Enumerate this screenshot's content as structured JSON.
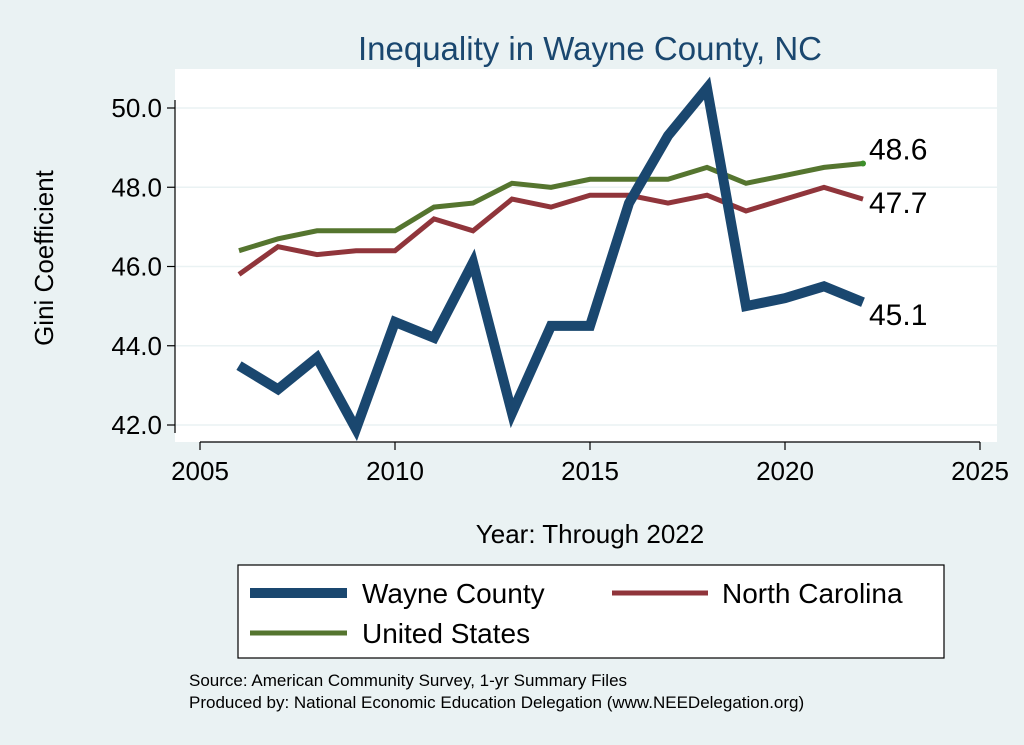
{
  "chart_data": {
    "type": "line",
    "title": "Inequality in Wayne County, NC",
    "xlabel": "Year: Through 2022",
    "ylabel": "Gini Coefficient",
    "xlim": [
      2005,
      2025
    ],
    "ylim": [
      41.8,
      50.9
    ],
    "xticks": [
      2005,
      2010,
      2015,
      2020,
      2025
    ],
    "yticks": [
      42.0,
      44.0,
      46.0,
      48.0,
      50.0
    ],
    "ytick_labels": [
      "42.0",
      "44.0",
      "46.0",
      "48.0",
      "50.0"
    ],
    "x": [
      2006,
      2007,
      2008,
      2009,
      2010,
      2011,
      2012,
      2013,
      2014,
      2015,
      2016,
      2017,
      2018,
      2019,
      2020,
      2021,
      2022
    ],
    "series": [
      {
        "name": "Wayne County",
        "color": "#1a476f",
        "values": [
          43.5,
          42.9,
          43.7,
          41.9,
          44.6,
          44.2,
          46.1,
          42.3,
          44.5,
          44.5,
          47.6,
          49.3,
          50.5,
          45.0,
          45.2,
          45.5,
          45.1
        ],
        "end_label": "45.1"
      },
      {
        "name": "North Carolina",
        "color": "#90353b",
        "values": [
          45.8,
          46.5,
          46.3,
          46.4,
          46.4,
          47.2,
          46.9,
          47.7,
          47.5,
          47.8,
          47.8,
          47.6,
          47.8,
          47.4,
          47.7,
          48.0,
          47.7
        ],
        "end_label": "47.7"
      },
      {
        "name": "United States",
        "color": "#55752f",
        "values": [
          46.4,
          46.7,
          46.9,
          46.9,
          46.9,
          47.5,
          47.6,
          48.1,
          48.0,
          48.2,
          48.2,
          48.2,
          48.5,
          48.1,
          48.3,
          48.5,
          48.6
        ],
        "end_label": "48.6"
      }
    ],
    "legend_position": "bottom",
    "grid": true
  },
  "source": {
    "line1": "Source: American Community Survey, 1-yr Summary Files",
    "line2": "Produced by: National Economic Education Delegation (www.NEEDelegation.org)"
  }
}
